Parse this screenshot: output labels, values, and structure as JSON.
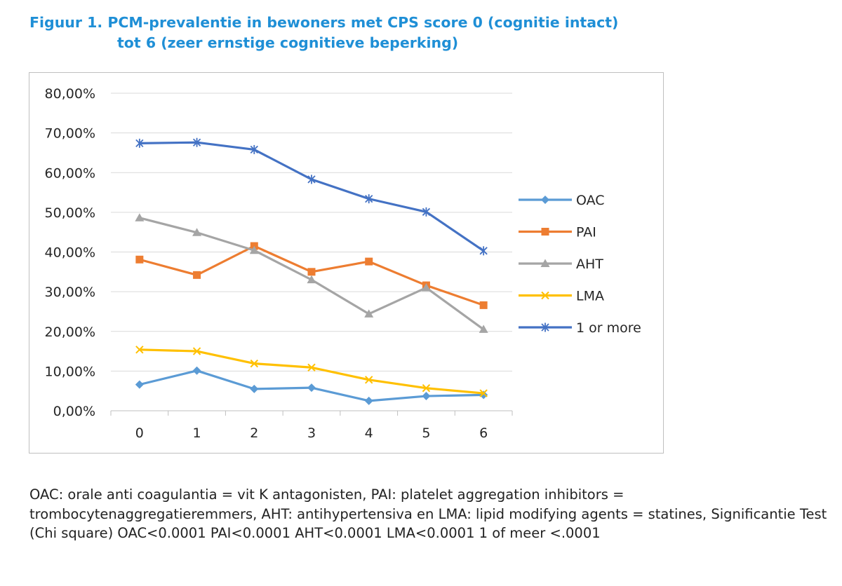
{
  "title": {
    "line1": "Figuur 1. PCM-prevalentie in bewoners met CPS score 0 (cognitie intact)",
    "line2": "tot 6 (zeer ernstige cognitieve beperking)"
  },
  "chart_data": {
    "type": "line",
    "x": [
      "0",
      "1",
      "2",
      "3",
      "4",
      "5",
      "6"
    ],
    "ylim": [
      0,
      80
    ],
    "yticks": [
      "0,00%",
      "10,00%",
      "20,00%",
      "30,00%",
      "40,00%",
      "50,00%",
      "60,00%",
      "70,00%",
      "80,00%"
    ],
    "grid": true,
    "legend": "right",
    "series": [
      {
        "name": "OAC",
        "color": "#5b9bd5",
        "marker": "diamond",
        "values": [
          6.6,
          10.1,
          5.5,
          5.8,
          2.5,
          3.7,
          4.0
        ]
      },
      {
        "name": "PAI",
        "color": "#ed7d31",
        "marker": "square",
        "values": [
          38.1,
          34.2,
          41.5,
          35.0,
          37.6,
          31.6,
          26.6
        ]
      },
      {
        "name": "AHT",
        "color": "#a5a5a5",
        "marker": "triangle",
        "values": [
          48.6,
          44.9,
          40.4,
          33.0,
          24.4,
          31.0,
          20.5
        ]
      },
      {
        "name": "LMA",
        "color": "#ffc000",
        "marker": "x",
        "values": [
          15.4,
          15.0,
          11.9,
          10.9,
          7.8,
          5.7,
          4.4
        ]
      },
      {
        "name": "1 or more",
        "color": "#4472c4",
        "marker": "star",
        "values": [
          67.4,
          67.6,
          65.8,
          58.3,
          53.4,
          50.1,
          40.3
        ]
      }
    ]
  },
  "caption": "OAC: orale anti coagulantia = vit K antagonisten, PAI: platelet aggregation inhibitors = trombocytenaggregatieremmers, AHT: antihypertensiva en LMA: lipid modifying agents = statines, Significantie Test (Chi square) OAC<0.0001  PAI<0.0001  AHT<0.0001  LMA<0.0001 1 of meer <.0001"
}
